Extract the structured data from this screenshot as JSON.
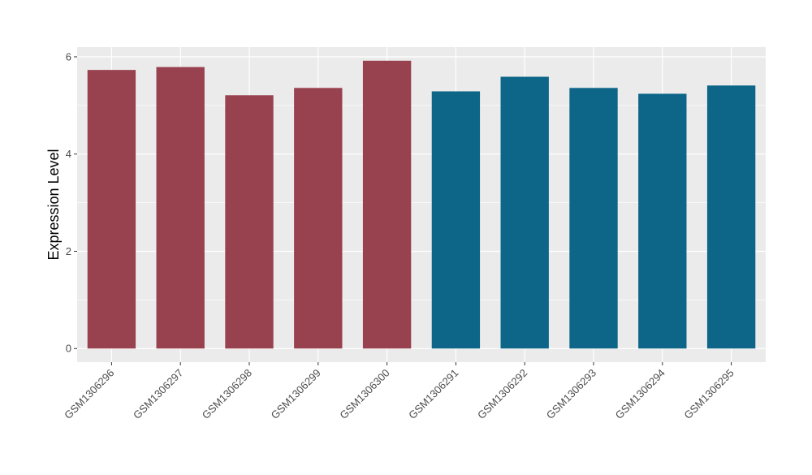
{
  "chart_data": {
    "type": "bar",
    "title": "",
    "xlabel": "",
    "ylabel": "Expression Level",
    "categories": [
      "GSM1306296",
      "GSM1306297",
      "GSM1306298",
      "GSM1306299",
      "GSM1306300",
      "GSM1306291",
      "GSM1306292",
      "GSM1306293",
      "GSM1306294",
      "GSM1306295"
    ],
    "values": [
      5.73,
      5.79,
      5.21,
      5.36,
      5.92,
      5.29,
      5.59,
      5.36,
      5.24,
      5.41
    ],
    "bar_colors": [
      "#99424f",
      "#99424f",
      "#99424f",
      "#99424f",
      "#99424f",
      "#0d6688",
      "#0d6688",
      "#0d6688",
      "#0d6688",
      "#0d6688"
    ],
    "ylim": [
      -0.28,
      6.2
    ],
    "yticks": [
      0,
      2,
      4,
      6
    ],
    "grid": true,
    "legend": "none",
    "panel_background": "#ebebeb",
    "gridline_color": "#ffffff"
  }
}
